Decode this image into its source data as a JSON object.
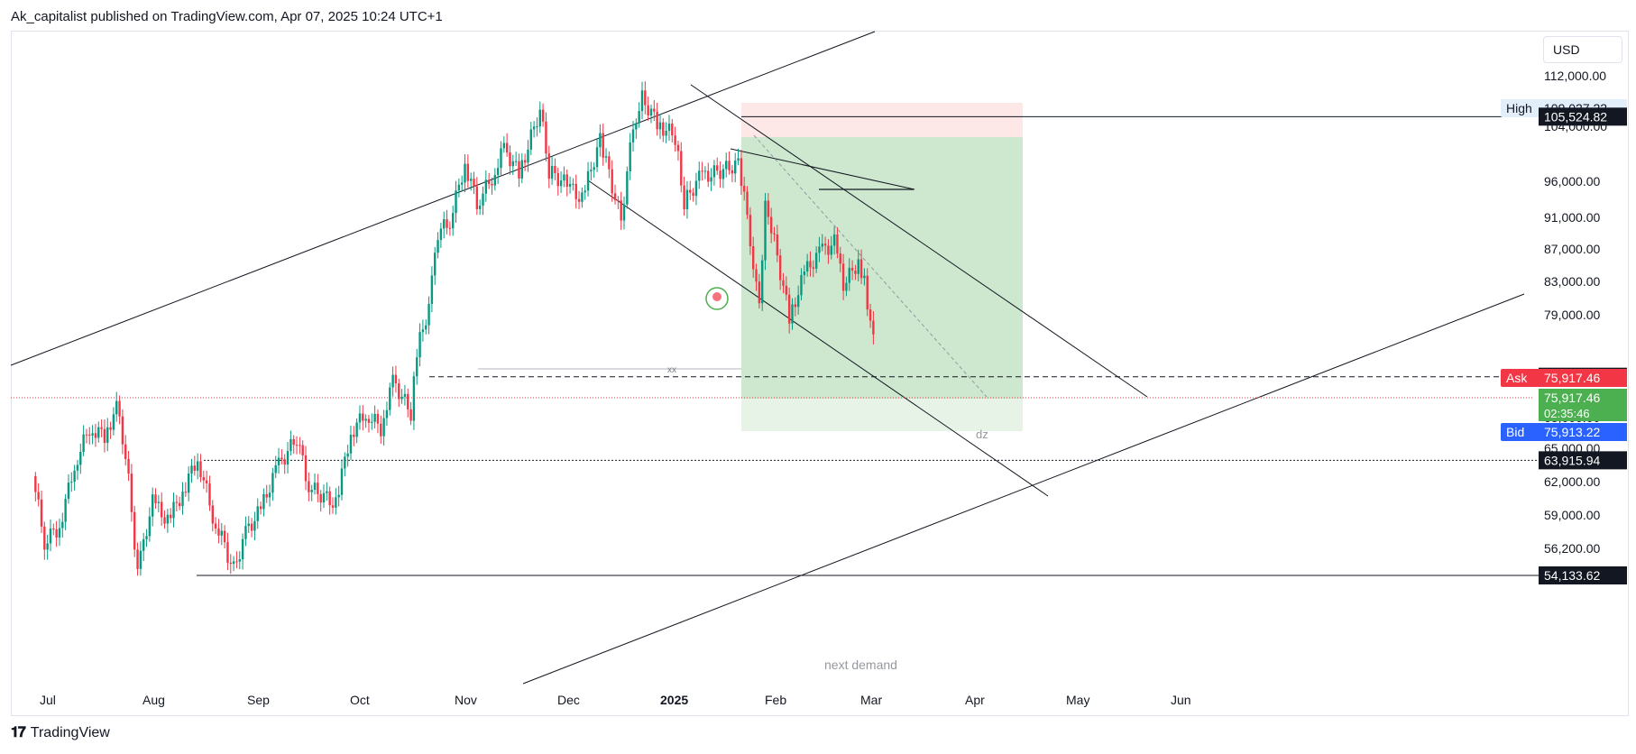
{
  "header": {
    "publisher_line": "Ak_capitalist published on TradingView.com, Apr 07, 2025 10:24 UTC+1"
  },
  "footer": {
    "brand": "TradingView"
  },
  "toolbar": {
    "currency": "USD"
  },
  "colors": {
    "up": "#089981",
    "down": "#f23645",
    "ask": "#f23645",
    "bid": "#2962ff",
    "last": "#4caf50",
    "target_zone": "#c8e6c9",
    "stop_zone": "#fde4e4"
  },
  "chart_data": {
    "type": "candlestick",
    "symbol_currency": "USD",
    "x_axis": {
      "ticks": [
        "Jul",
        "Aug",
        "Sep",
        "Oct",
        "Nov",
        "Dec",
        "2025",
        "Feb",
        "Mar",
        "Apr",
        "May",
        "Jun"
      ],
      "range": [
        "2024-07-01",
        "2025-06-30"
      ]
    },
    "y_axis": {
      "ticks": [
        "112,000.00",
        "104,000.00",
        "96,000.00",
        "91,000.00",
        "87,000.00",
        "83,000.00",
        "79,000.00",
        "68,000.00",
        "65,000.00",
        "62,000.00",
        "59,000.00",
        "56,200.00"
      ],
      "ylim": [
        53000,
        114000
      ]
    },
    "price_labels": {
      "high_label": "High",
      "high_value": "109,027.22",
      "ask_label": "Ask",
      "ask_value": "75,917.46",
      "last_value": "75,917.46",
      "countdown": "02:35:46",
      "bid_label": "Bid",
      "bid_value": "75,913.22"
    },
    "horizontal_levels": [
      {
        "value": "105,524.82",
        "style": "solid"
      },
      {
        "value": "72,371.23",
        "style": "dashed"
      },
      {
        "value": "63,915.94",
        "style": "dotted"
      },
      {
        "value": "54,133.62",
        "style": "solid",
        "annotation": "next demand"
      }
    ],
    "annotations": [
      "xx",
      "dz",
      "next demand"
    ],
    "price_series": [
      {
        "date": "2024-07-01",
        "close": 62500
      },
      {
        "date": "2024-07-05",
        "close": 56800
      },
      {
        "date": "2024-07-10",
        "close": 58000
      },
      {
        "date": "2024-07-15",
        "close": 63500
      },
      {
        "date": "2024-07-20",
        "close": 67000
      },
      {
        "date": "2024-07-25",
        "close": 66200
      },
      {
        "date": "2024-07-29",
        "close": 69000
      },
      {
        "date": "2024-08-01",
        "close": 64500
      },
      {
        "date": "2024-08-05",
        "close": 54300
      },
      {
        "date": "2024-08-10",
        "close": 60200
      },
      {
        "date": "2024-08-15",
        "close": 58500
      },
      {
        "date": "2024-08-20",
        "close": 61000
      },
      {
        "date": "2024-08-25",
        "close": 64200
      },
      {
        "date": "2024-08-30",
        "close": 59000
      },
      {
        "date": "2024-09-06",
        "close": 54500
      },
      {
        "date": "2024-09-10",
        "close": 57500
      },
      {
        "date": "2024-09-15",
        "close": 59500
      },
      {
        "date": "2024-09-20",
        "close": 63000
      },
      {
        "date": "2024-09-27",
        "close": 66000
      },
      {
        "date": "2024-10-01",
        "close": 61500
      },
      {
        "date": "2024-10-10",
        "close": 60000
      },
      {
        "date": "2024-10-15",
        "close": 66500
      },
      {
        "date": "2024-10-20",
        "close": 68500
      },
      {
        "date": "2024-10-25",
        "close": 67000
      },
      {
        "date": "2024-10-29",
        "close": 72000
      },
      {
        "date": "2024-11-04",
        "close": 68500
      },
      {
        "date": "2024-11-06",
        "close": 75000
      },
      {
        "date": "2024-11-10",
        "close": 80000
      },
      {
        "date": "2024-11-13",
        "close": 89000
      },
      {
        "date": "2024-11-17",
        "close": 90500
      },
      {
        "date": "2024-11-22",
        "close": 98500
      },
      {
        "date": "2024-11-26",
        "close": 93000
      },
      {
        "date": "2024-12-01",
        "close": 96500
      },
      {
        "date": "2024-12-05",
        "close": 101000
      },
      {
        "date": "2024-12-10",
        "close": 97000
      },
      {
        "date": "2024-12-17",
        "close": 106500
      },
      {
        "date": "2024-12-20",
        "close": 97500
      },
      {
        "date": "2024-12-26",
        "close": 95500
      },
      {
        "date": "2024-12-31",
        "close": 93500
      },
      {
        "date": "2025-01-06",
        "close": 102000
      },
      {
        "date": "2025-01-13",
        "close": 90500
      },
      {
        "date": "2025-01-17",
        "close": 104000
      },
      {
        "date": "2025-01-20",
        "close": 108500
      },
      {
        "date": "2025-01-25",
        "close": 104500
      },
      {
        "date": "2025-01-31",
        "close": 102500
      },
      {
        "date": "2025-02-03",
        "close": 93000
      },
      {
        "date": "2025-02-08",
        "close": 96500
      },
      {
        "date": "2025-02-15",
        "close": 97500
      },
      {
        "date": "2025-02-21",
        "close": 98500
      },
      {
        "date": "2025-02-25",
        "close": 88500
      },
      {
        "date": "2025-02-28",
        "close": 79500
      },
      {
        "date": "2025-03-02",
        "close": 93500
      },
      {
        "date": "2025-03-05",
        "close": 88000
      },
      {
        "date": "2025-03-10",
        "close": 78500
      },
      {
        "date": "2025-03-15",
        "close": 84000
      },
      {
        "date": "2025-03-20",
        "close": 86500
      },
      {
        "date": "2025-03-25",
        "close": 87800
      },
      {
        "date": "2025-03-28",
        "close": 82500
      },
      {
        "date": "2025-04-02",
        "close": 85500
      },
      {
        "date": "2025-04-04",
        "close": 83000
      },
      {
        "date": "2025-04-07",
        "close": 75917
      }
    ]
  }
}
